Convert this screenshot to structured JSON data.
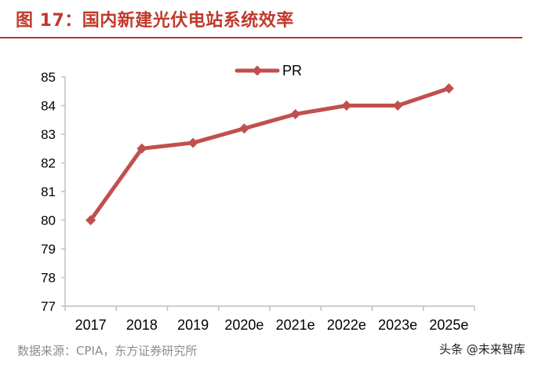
{
  "figure": {
    "title": "图 17：国内新建光伏电站系统效率",
    "source": "数据来源：CPIA，东方证券研究所"
  },
  "watermark": {
    "text": "头条 @未来智库",
    "logo_icon": "circle-logo-icon"
  },
  "colors": {
    "accent": "#c0392b",
    "series": "#c0504d",
    "axis": "#bfbfbf"
  },
  "chart_data": {
    "type": "line",
    "title": "",
    "xlabel": "",
    "ylabel": "",
    "categories": [
      "2017",
      "2018",
      "2019",
      "2020e",
      "2021e",
      "2022e",
      "2023e",
      "2025e"
    ],
    "series": [
      {
        "name": "PR",
        "values": [
          80.0,
          82.5,
          82.7,
          83.2,
          83.7,
          84.0,
          84.0,
          84.6
        ],
        "color": "#c0504d",
        "marker": "diamond"
      }
    ],
    "ylim": [
      77,
      85
    ],
    "yticks": [
      "77",
      "78",
      "79",
      "80",
      "81",
      "82",
      "83",
      "84",
      "85"
    ],
    "grid": false,
    "legend": "top-center"
  }
}
